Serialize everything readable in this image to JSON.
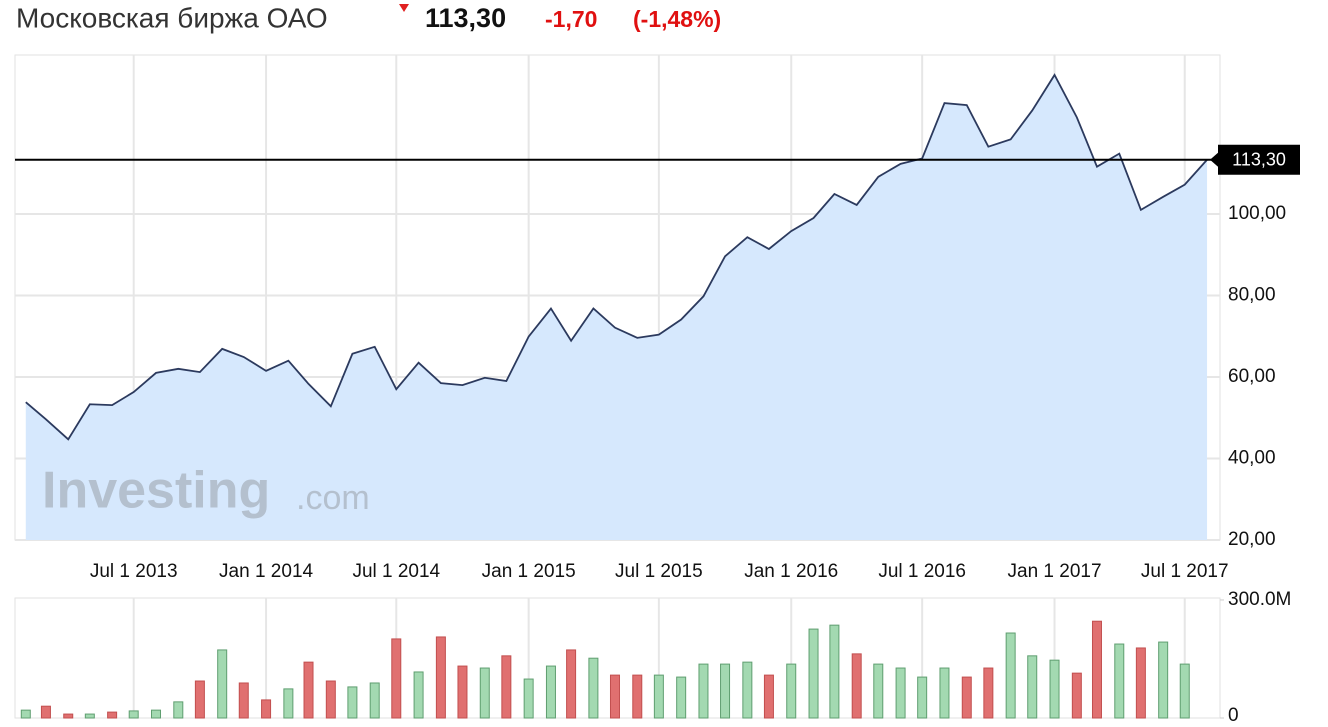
{
  "header": {
    "title": "Московская биржа ОАО",
    "price": "113,30",
    "change": "-1,70",
    "change_pct": "(-1,48%)"
  },
  "watermark": {
    "brand": "Investing",
    "suffix": ".com"
  },
  "chart_data": [
    {
      "type": "area",
      "color": "#2c3a5e",
      "fill": "#d6e8fd",
      "x": [
        "2013-02-01",
        "2013-03-01",
        "2013-04-01",
        "2013-05-01",
        "2013-06-01",
        "2013-07-01",
        "2013-08-01",
        "2013-09-01",
        "2013-10-01",
        "2013-11-01",
        "2013-12-01",
        "2014-01-01",
        "2014-02-01",
        "2014-03-01",
        "2014-04-01",
        "2014-05-01",
        "2014-06-01",
        "2014-07-01",
        "2014-08-01",
        "2014-09-01",
        "2014-10-01",
        "2014-11-01",
        "2014-12-01",
        "2015-01-01",
        "2015-02-01",
        "2015-03-01",
        "2015-04-01",
        "2015-05-01",
        "2015-06-01",
        "2015-07-01",
        "2015-08-01",
        "2015-09-01",
        "2015-10-01",
        "2015-11-01",
        "2015-12-01",
        "2016-01-01",
        "2016-02-01",
        "2016-03-01",
        "2016-04-01",
        "2016-05-01",
        "2016-06-01",
        "2016-07-01",
        "2016-08-01",
        "2016-09-01",
        "2016-10-01",
        "2016-11-01",
        "2016-12-01",
        "2017-01-01",
        "2017-02-01",
        "2017-03-01",
        "2017-04-01",
        "2017-05-01",
        "2017-06-01",
        "2017-07-01",
        "2017-08-01"
      ],
      "values": [
        53.8,
        49.6,
        44.7,
        53.3,
        53.1,
        56.3,
        61.0,
        62.0,
        61.2,
        66.9,
        64.9,
        61.5,
        64.0,
        58.3,
        52.8,
        65.7,
        67.4,
        57.0,
        63.5,
        58.5,
        58.0,
        59.8,
        59.0,
        69.9,
        76.8,
        68.9,
        76.8,
        72.1,
        69.6,
        70.4,
        74.1,
        79.8,
        89.6,
        94.3,
        91.4,
        95.8,
        99.0,
        104.9,
        102.2,
        109.1,
        112.3,
        113.6,
        127.2,
        126.7,
        116.5,
        118.3,
        125.4,
        134.1,
        123.7,
        111.6,
        114.8,
        101.0,
        104.2,
        107.2,
        113.3
      ],
      "xlim": [
        "2013-01-17",
        "2017-08-19"
      ],
      "xticks": [
        {
          "value": "2013-07-01",
          "label": "Jul 1 2013"
        },
        {
          "value": "2014-01-01",
          "label": "Jan 1 2014"
        },
        {
          "value": "2014-07-01",
          "label": "Jul 1 2014"
        },
        {
          "value": "2015-01-01",
          "label": "Jan 1 2015"
        },
        {
          "value": "2015-07-01",
          "label": "Jul 1 2015"
        },
        {
          "value": "2016-01-01",
          "label": "Jan 1 2016"
        },
        {
          "value": "2016-07-01",
          "label": "Jul 1 2016"
        },
        {
          "value": "2017-01-01",
          "label": "Jan 1 2017"
        },
        {
          "value": "2017-07-01",
          "label": "Jul 1 2017"
        }
      ],
      "ylim": [
        20,
        139
      ],
      "yticks": [
        {
          "value": 20,
          "label": "20,00"
        },
        {
          "value": 40,
          "label": "40,00"
        },
        {
          "value": 60,
          "label": "60,00"
        },
        {
          "value": 80,
          "label": "80,00"
        },
        {
          "value": 100,
          "label": "100,00"
        }
      ],
      "last_value": 113.3,
      "grid": true
    },
    {
      "type": "bar",
      "values": [
        20000000,
        30000000,
        10000000,
        10000000,
        15000000,
        18000000,
        20000000,
        41000000,
        94000000,
        173000000,
        89000000,
        46000000,
        74000000,
        142000000,
        94000000,
        79000000,
        89000000,
        201000000,
        117000000,
        206000000,
        132000000,
        127000000,
        158000000,
        99000000,
        132000000,
        173000000,
        152000000,
        109000000,
        109000000,
        109000000,
        104000000,
        137000000,
        137000000,
        142000000,
        109000000,
        137000000,
        226000000,
        236000000,
        163000000,
        137000000,
        127000000,
        104000000,
        127000000,
        104000000,
        127000000,
        216000000,
        158000000,
        147000000,
        114000000,
        246000000,
        188000000,
        178000000,
        193000000,
        137000000,
        null
      ],
      "colors": [
        "#a3d9b1",
        "#e07070",
        "#e07070",
        "#a3d9b1",
        "#e07070",
        "#a3d9b1",
        "#a3d9b1",
        "#a3d9b1",
        "#e07070",
        "#a3d9b1",
        "#e07070",
        "#e07070",
        "#a3d9b1",
        "#e07070",
        "#e07070",
        "#a3d9b1",
        "#a3d9b1",
        "#e07070",
        "#a3d9b1",
        "#e07070",
        "#e07070",
        "#a3d9b1",
        "#e07070",
        "#a3d9b1",
        "#a3d9b1",
        "#e07070",
        "#a3d9b1",
        "#e07070",
        "#e07070",
        "#a3d9b1",
        "#a3d9b1",
        "#a3d9b1",
        "#a3d9b1",
        "#a3d9b1",
        "#e07070",
        "#a3d9b1",
        "#a3d9b1",
        "#a3d9b1",
        "#e07070",
        "#a3d9b1",
        "#a3d9b1",
        "#a3d9b1",
        "#a3d9b1",
        "#e07070",
        "#e07070",
        "#a3d9b1",
        "#a3d9b1",
        "#a3d9b1",
        "#e07070",
        "#e07070",
        "#a3d9b1",
        "#e07070",
        "#a3d9b1",
        "#a3d9b1",
        "#a3d9b1"
      ],
      "ylim": [
        0,
        305000000
      ],
      "yticks": [
        0,
        {
          "value": 300000000,
          "label": "300.0M"
        }
      ]
    }
  ]
}
